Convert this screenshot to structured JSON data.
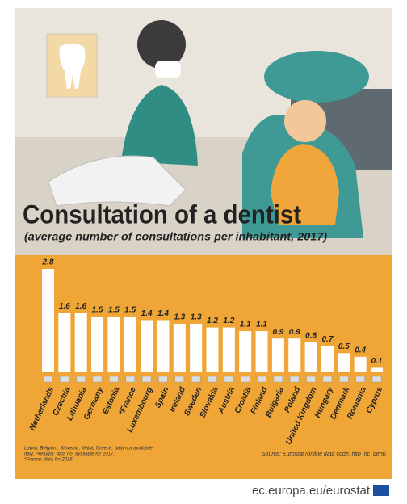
{
  "chart_data": {
    "type": "bar",
    "title": "Consultation of a dentist",
    "subtitle": "(average number of consultations per inhabitant, 2017)",
    "categories": [
      "Netherlands",
      "Czechia",
      "Lithuania",
      "Germany",
      "Estonia",
      "*France",
      "Luxembourg",
      "Spain",
      "Ireland",
      "Sweden",
      "Slovakia",
      "Austria",
      "Croatia",
      "Finland",
      "Bulgaria",
      "Poland",
      "United Kingdom",
      "Hungary",
      "Denmark",
      "Romania",
      "Cyprus"
    ],
    "values": [
      2.8,
      1.6,
      1.6,
      1.5,
      1.5,
      1.5,
      1.4,
      1.4,
      1.3,
      1.3,
      1.2,
      1.2,
      1.1,
      1.1,
      0.9,
      0.9,
      0.8,
      0.7,
      0.5,
      0.4,
      0.1
    ],
    "color": "#ffffff",
    "notes": [
      "Latvia, Belgium, Slovenia, Malta, Greece: data not available.",
      "Italy, Portugal: data not available for 2017.",
      "*France: data for 2016."
    ],
    "source": "Source: Eurostat (online data code: hlth_hc_dent)",
    "footer": "ec.europa.eu/eurostat"
  }
}
